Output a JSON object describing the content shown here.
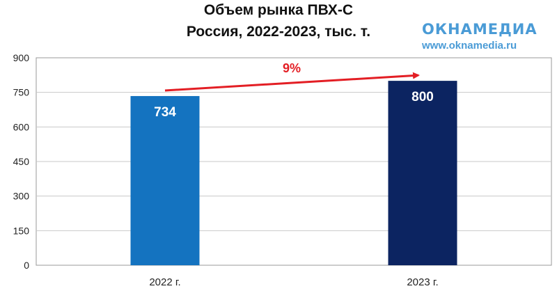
{
  "chart_data": {
    "type": "bar",
    "title_line1": "Объем рынка ПВХ-С",
    "title_line2": "Россия, 2022-2023, тыс. т.",
    "categories": [
      "2022 г.",
      "2023 г."
    ],
    "values": [
      734,
      800
    ],
    "value_labels": [
      "734",
      "800"
    ],
    "bar_colors": [
      "#1473c0",
      "#0c2461"
    ],
    "ylim": [
      0,
      900
    ],
    "yticks": [
      "0",
      "150",
      "300",
      "450",
      "600",
      "750",
      "900"
    ],
    "grid": true,
    "annotation": {
      "text": "9%",
      "color": "#e31e24"
    }
  },
  "logo": {
    "word": "ОКНАМЕДИА",
    "url": "www.oknamedia.ru",
    "color": "#4a9bd6"
  }
}
